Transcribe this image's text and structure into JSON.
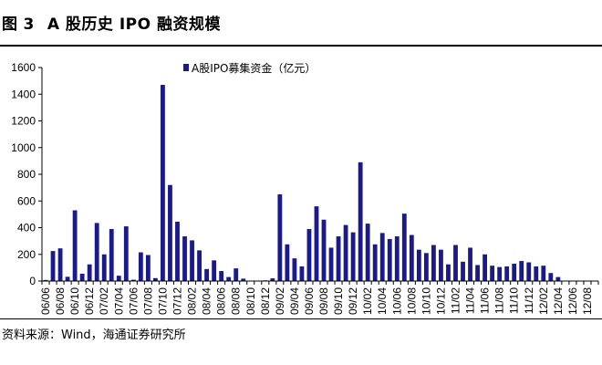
{
  "figure": {
    "label": "图",
    "number": "3",
    "title": "A 股历史 IPO 融资规模",
    "source": "资料来源：Wind，海通证券研究所"
  },
  "chart_data": {
    "type": "bar",
    "legend": "A股IPO募集资金（亿元）",
    "legend_position": "top-left",
    "ylim": [
      0,
      1600
    ],
    "yticks": [
      0,
      200,
      400,
      600,
      800,
      1000,
      1200,
      1400,
      1600
    ],
    "grid": false,
    "color": "#1a1a8c",
    "x_tick_labels": [
      "06/06",
      "06/08",
      "06/10",
      "06/12",
      "07/02",
      "07/04",
      "07/06",
      "07/08",
      "07/10",
      "07/12",
      "08/02",
      "08/04",
      "08/06",
      "08/08",
      "08/10",
      "08/12",
      "09/02",
      "09/04",
      "09/06",
      "09/08",
      "09/10",
      "09/12",
      "10/02",
      "10/04",
      "10/06",
      "10/08",
      "10/10",
      "10/12",
      "11/02",
      "11/04",
      "11/06",
      "11/08",
      "11/10",
      "11/12",
      "12/02",
      "12/04",
      "12/06",
      "12/08"
    ],
    "categories": [
      "06/06",
      "06/07",
      "06/08",
      "06/09",
      "06/10",
      "06/11",
      "06/12",
      "07/01",
      "07/02",
      "07/03",
      "07/04",
      "07/05",
      "07/06",
      "07/07",
      "07/08",
      "07/09",
      "07/10",
      "07/11",
      "07/12",
      "08/01",
      "08/02",
      "08/03",
      "08/04",
      "08/05",
      "08/06",
      "08/07",
      "08/08",
      "08/09",
      "08/10",
      "08/11",
      "08/12",
      "09/01",
      "09/02",
      "09/03",
      "09/04",
      "09/05",
      "09/06",
      "09/07",
      "09/08",
      "09/09",
      "09/10",
      "09/11",
      "09/12",
      "10/01",
      "10/02",
      "10/03",
      "10/04",
      "10/05",
      "10/06",
      "10/07",
      "10/08",
      "10/09",
      "10/10",
      "10/11",
      "10/12",
      "11/01",
      "11/02",
      "11/03",
      "11/04",
      "11/05",
      "11/06",
      "11/07",
      "11/08",
      "11/09",
      "11/10",
      "11/11",
      "11/12",
      "12/01",
      "12/02",
      "12/03",
      "12/04",
      "12/05",
      "12/06",
      "12/07",
      "12/08",
      "12/09"
    ],
    "values": [
      8,
      225,
      245,
      32,
      530,
      55,
      125,
      435,
      200,
      390,
      40,
      410,
      10,
      215,
      195,
      22,
      1470,
      720,
      445,
      335,
      305,
      230,
      90,
      155,
      75,
      30,
      95,
      18,
      0,
      3,
      5,
      20,
      650,
      275,
      170,
      110,
      390,
      560,
      460,
      250,
      335,
      420,
      365,
      890,
      430,
      275,
      360,
      315,
      335,
      505,
      345,
      235,
      210,
      270,
      235,
      125,
      270,
      145,
      250,
      120,
      200,
      115,
      105,
      110,
      130,
      150,
      140,
      110,
      115,
      60,
      30,
      0,
      0,
      0,
      0,
      0
    ]
  }
}
